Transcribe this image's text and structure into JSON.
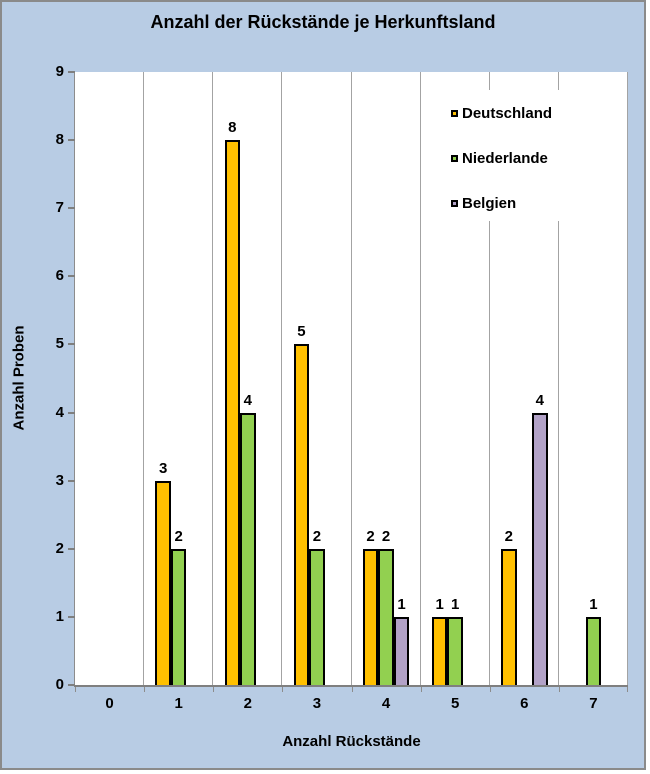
{
  "window": {
    "background_color": "#b8cce4",
    "border_color": "#8a8a8a",
    "plot_background": "#ffffff",
    "gridline_color": "#a3a3a3",
    "axis_color": "#7f7f7f",
    "bar_border_color": "#000000"
  },
  "chart_data": {
    "type": "bar",
    "title": "Anzahl der Rückstände je Herkunftsland",
    "xlabel": "Anzahl Rückstände",
    "ylabel": "Anzahl Proben",
    "categories": [
      "0",
      "1",
      "2",
      "3",
      "4",
      "5",
      "6",
      "7"
    ],
    "series": [
      {
        "name": "Deutschland",
        "color": "#ffc000",
        "values": [
          null,
          3,
          8,
          5,
          2,
          1,
          2,
          null
        ]
      },
      {
        "name": "Niederlande",
        "color": "#92d050",
        "values": [
          null,
          2,
          4,
          2,
          2,
          1,
          null,
          1
        ]
      },
      {
        "name": "Belgien",
        "color": "#b2a2c7",
        "values": [
          null,
          null,
          null,
          null,
          1,
          null,
          4,
          null
        ]
      }
    ],
    "ylim": [
      0,
      9
    ],
    "yticks": [
      0,
      1,
      2,
      3,
      4,
      5,
      6,
      7,
      8,
      9
    ],
    "grid": "vertical",
    "value_labels": true,
    "legend_position": "upper-right"
  }
}
